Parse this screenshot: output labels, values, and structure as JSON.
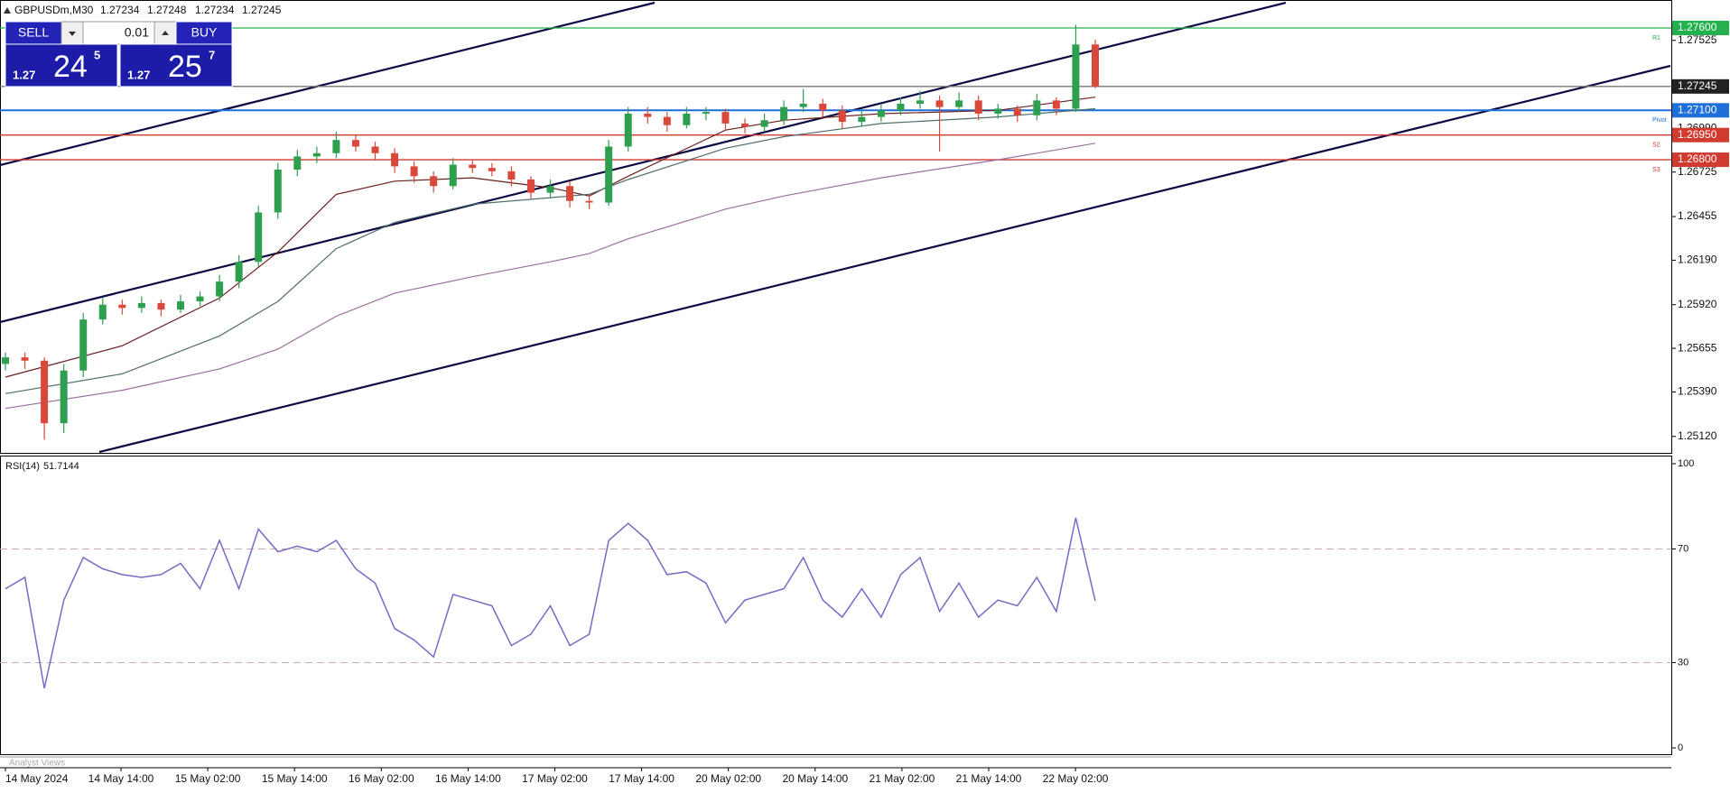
{
  "header": {
    "symbol": "GBPUSDm,M30",
    "quote": [
      1.27234,
      1.27248,
      1.27234,
      1.27245
    ]
  },
  "trade_panel": {
    "sell": "SELL",
    "lot": "0.01",
    "buy": "BUY",
    "sell_price": [
      "1.27",
      "24",
      "5"
    ],
    "buy_price": [
      "1.27",
      "25",
      "7"
    ]
  },
  "footer": {
    "analyst_views": "Analyst Views"
  },
  "chart_data": [
    {
      "type": "candlestick",
      "up_color": "#2e9e4f",
      "down_color": "#d9483b",
      "ylim": [
        1.2502,
        1.2777
      ],
      "yticks": [
        1.27525,
        {
          "value": 1.2699,
          "label": "1.26990"
        },
        1.26725,
        1.26455,
        {
          "value": 1.2619,
          "label": "1.26190"
        },
        {
          "value": 1.2592,
          "label": "1.25920"
        },
        1.25655,
        {
          "value": 1.2539,
          "label": "1.25390"
        },
        {
          "value": 1.2512,
          "label": "1.25120"
        }
      ],
      "x_labels": [
        "14 May 2024",
        "14 May 14:00",
        "15 May 02:00",
        "15 May 14:00",
        "16 May 02:00",
        "16 May 14:00",
        "17 May 02:00",
        "17 May 14:00",
        "20 May 02:00",
        "20 May 14:00",
        "21 May 02:00",
        "21 May 14:00",
        "22 May 02:00"
      ],
      "open": [
        1.2556,
        1.256,
        1.2558,
        1.252,
        1.2552,
        1.2583,
        1.2592,
        1.259,
        1.2593,
        1.2589,
        1.2594,
        1.2597,
        1.2606,
        1.2618,
        1.2648,
        1.2674,
        1.2682,
        1.2684,
        1.2692,
        1.2688,
        1.2684,
        1.2676,
        1.267,
        1.2664,
        1.2677,
        1.2675,
        1.2673,
        1.2668,
        1.266,
        1.2664,
        1.2655,
        1.2654,
        1.2688,
        1.2708,
        1.2706,
        1.2701,
        1.2708,
        1.2709,
        1.2702,
        1.27,
        1.2704,
        1.2712,
        1.2714,
        1.271,
        1.2703,
        1.2706,
        1.271,
        1.2714,
        1.2716,
        1.2712,
        1.2716,
        1.2708,
        1.2711,
        1.2707,
        1.2716,
        1.2711,
        1.275
      ],
      "high": [
        1.2563,
        1.2563,
        1.256,
        1.2556,
        1.2587,
        1.2596,
        1.2595,
        1.2597,
        1.2595,
        1.2598,
        1.26,
        1.261,
        1.2622,
        1.2652,
        1.2678,
        1.2686,
        1.2688,
        1.2697,
        1.2695,
        1.2691,
        1.2687,
        1.2679,
        1.2673,
        1.2681,
        1.268,
        1.2678,
        1.2676,
        1.267,
        1.2668,
        1.2667,
        1.2659,
        1.2692,
        1.2712,
        1.2712,
        1.2709,
        1.2712,
        1.2712,
        1.2711,
        1.2705,
        1.2708,
        1.2716,
        1.2723,
        1.2717,
        1.2713,
        1.271,
        1.2714,
        1.2718,
        1.2722,
        1.2719,
        1.2721,
        1.2719,
        1.2714,
        1.2713,
        1.272,
        1.2718,
        1.2762,
        1.2753
      ],
      "low": [
        1.2552,
        1.2553,
        1.251,
        1.2514,
        1.2548,
        1.258,
        1.2586,
        1.2587,
        1.2585,
        1.2587,
        1.2591,
        1.2594,
        1.2602,
        1.2615,
        1.2644,
        1.267,
        1.2678,
        1.2681,
        1.2685,
        1.268,
        1.2672,
        1.2666,
        1.266,
        1.2662,
        1.2672,
        1.267,
        1.2664,
        1.2656,
        1.2657,
        1.2651,
        1.265,
        1.2652,
        1.2685,
        1.2702,
        1.2697,
        1.2699,
        1.2704,
        1.2698,
        1.2696,
        1.2697,
        1.2701,
        1.2709,
        1.2706,
        1.2699,
        1.27,
        1.2703,
        1.2707,
        1.2711,
        1.2685,
        1.2709,
        1.2704,
        1.2705,
        1.2703,
        1.2704,
        1.2707,
        1.2709,
        1.27234
      ],
      "close": [
        1.256,
        1.2558,
        1.252,
        1.2552,
        1.2583,
        1.2592,
        1.259,
        1.2593,
        1.2589,
        1.2594,
        1.2597,
        1.2606,
        1.2618,
        1.2648,
        1.2674,
        1.2682,
        1.2684,
        1.2692,
        1.2688,
        1.2684,
        1.2676,
        1.267,
        1.2664,
        1.2677,
        1.2675,
        1.2673,
        1.2668,
        1.266,
        1.2664,
        1.2655,
        1.2654,
        1.2688,
        1.2708,
        1.2706,
        1.2701,
        1.2708,
        1.2709,
        1.2702,
        1.27,
        1.2704,
        1.2712,
        1.2714,
        1.271,
        1.2703,
        1.2706,
        1.271,
        1.2714,
        1.2716,
        1.2712,
        1.2716,
        1.2708,
        1.2711,
        1.2707,
        1.2716,
        1.2711,
        1.275,
        1.27245
      ],
      "moving_averages": {
        "x": [
          0,
          6,
          11,
          14,
          17,
          20,
          24,
          28,
          30,
          32,
          37,
          40,
          45,
          51,
          56
        ],
        "series": [
          {
            "color": "#6b1f1f",
            "values": [
              1.2548,
              1.2567,
              1.2596,
              1.2624,
              1.2659,
              1.2667,
              1.2669,
              1.2663,
              1.2658,
              1.267,
              1.2698,
              1.2704,
              1.2708,
              1.271,
              1.2718
            ]
          },
          {
            "color": "#4f6e6a",
            "values": [
              1.2538,
              1.255,
              1.2573,
              1.2594,
              1.2626,
              1.2642,
              1.2653,
              1.2657,
              1.2659,
              1.2668,
              1.2687,
              1.2694,
              1.2702,
              1.2706,
              1.2711
            ]
          },
          {
            "color": "#9c6fa0",
            "values": [
              1.2529,
              1.254,
              1.2553,
              1.2565,
              1.2585,
              1.2599,
              1.2609,
              1.2618,
              1.2623,
              1.2632,
              1.265,
              1.2658,
              1.2669,
              1.268,
              1.269
            ]
          }
        ]
      },
      "levels": [
        {
          "name": "R1",
          "value": 1.276,
          "label": "1.27600",
          "color": "#22b14c"
        },
        {
          "value": 1.27245,
          "color": "#222222",
          "line_color": "#777777"
        },
        {
          "name": "Pivot",
          "value": 1.271,
          "label": "1.27100",
          "color": "#1e6fd9"
        },
        {
          "name": "S2",
          "value": 1.2695,
          "label": "1.26950",
          "color": "#d03a2f"
        },
        {
          "name": "S3",
          "value": 1.268,
          "label": "1.26800",
          "color": "#d03a2f"
        }
      ]
    },
    {
      "type": "line",
      "title": "RSI(14)",
      "color": "#7a68c4",
      "ylim": [
        0,
        100
      ],
      "yticks": [
        100,
        70,
        30,
        0
      ],
      "values": [
        56,
        60,
        21,
        52,
        67,
        63,
        61,
        60,
        61,
        65,
        56,
        73,
        56,
        77,
        69,
        71,
        69,
        73,
        63,
        58,
        42,
        38,
        32,
        54,
        52,
        50,
        36,
        40,
        50,
        36,
        40,
        73,
        79,
        73,
        61,
        62,
        58,
        44,
        52,
        54,
        56,
        67,
        52,
        46,
        56,
        46,
        61,
        67,
        48,
        58,
        46,
        52,
        50,
        60,
        48,
        81,
        51.7144
      ]
    }
  ]
}
